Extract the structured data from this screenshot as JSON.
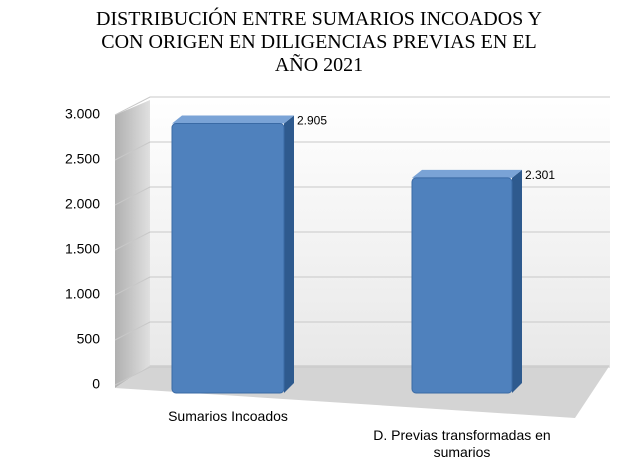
{
  "chart_data": {
    "type": "bar",
    "title": "DISTRIBUCIÓN ENTRE SUMARIOS INCOADOS Y CON ORIGEN EN DILIGENCIAS PREVIAS EN EL AÑO 2021",
    "categories": [
      "Sumarios Incoados",
      "D. Previas transformadas en sumarios"
    ],
    "values": [
      2905,
      2301
    ],
    "value_labels": [
      "2.905",
      "2.301"
    ],
    "color": "#4f81bd",
    "ylim": [
      0,
      3000
    ],
    "yticks": [
      0,
      {
        "value": 500,
        "label": "500"
      },
      {
        "value": 1000,
        "label": "1.000"
      },
      {
        "value": 1500,
        "label": "1.500"
      },
      {
        "value": 2000,
        "label": "2.000"
      },
      {
        "value": 2500,
        "label": "2.500"
      },
      {
        "value": 3000,
        "label": "3.000"
      }
    ],
    "grid": true
  }
}
